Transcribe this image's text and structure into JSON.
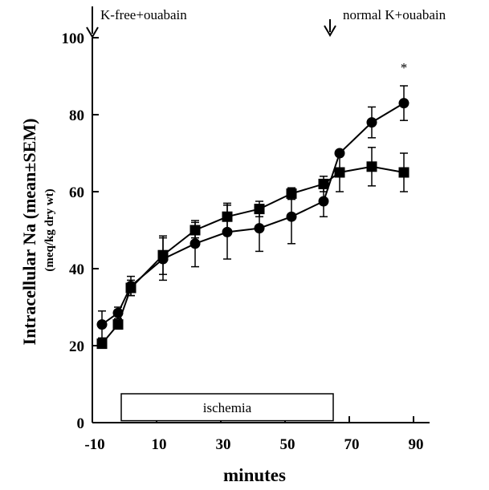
{
  "chart_data": {
    "type": "line",
    "title": "",
    "xlabel": "minutes",
    "ylabel": "Intracellular Na (mean±SEM)",
    "ylabel_sub": "(meq/kg dry wt)",
    "xlim": [
      -10,
      95
    ],
    "ylim": [
      0,
      100
    ],
    "xticks": [
      -10,
      10,
      30,
      50,
      70,
      90
    ],
    "yticks": [
      0,
      20,
      40,
      60,
      80,
      100
    ],
    "xtick_labels": [
      "-10",
      "10",
      "30",
      "50",
      "70",
      "90"
    ],
    "ytick_labels": [
      "0",
      "20",
      "40",
      "60",
      "80",
      "100"
    ],
    "grid": false,
    "series": [
      {
        "marker": "circle",
        "x": [
          -7,
          -2,
          2,
          12,
          22,
          32,
          42,
          52,
          62,
          67,
          77,
          87
        ],
        "values": [
          25.5,
          28.5,
          35.5,
          42.5,
          46.5,
          49.5,
          50.5,
          53.5,
          57.5,
          70,
          78,
          83
        ],
        "error": [
          3.5,
          1.5,
          2.5,
          5.5,
          6,
          7,
          6,
          7,
          4,
          0,
          4,
          4.5
        ]
      },
      {
        "marker": "square",
        "x": [
          -7,
          -2,
          2,
          12,
          22,
          32,
          42,
          52,
          62,
          67,
          77,
          87
        ],
        "values": [
          20.5,
          25.5,
          35,
          43.5,
          50,
          53.5,
          55.5,
          59.5,
          62,
          65,
          66.5,
          65
        ],
        "error": [
          0,
          0,
          2,
          5,
          2,
          3.5,
          2,
          1.5,
          2,
          5,
          5,
          5
        ]
      }
    ],
    "annotations": {
      "arrow_left": {
        "label": "K-free+ouabain",
        "x": -10
      },
      "arrow_right": {
        "label": "normal K+ouabain",
        "x": 64
      },
      "ischemia": {
        "label": "ischemia",
        "x_start": -1,
        "x_end": 65
      },
      "significance": {
        "label": "*",
        "x": 87
      }
    }
  }
}
